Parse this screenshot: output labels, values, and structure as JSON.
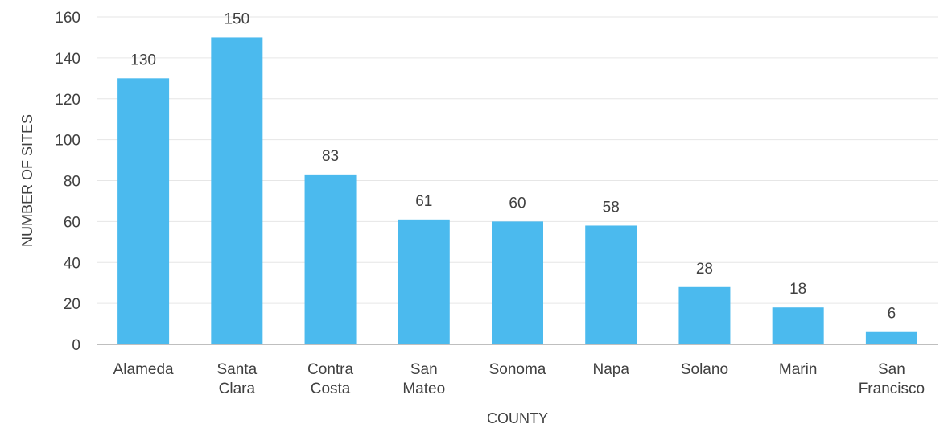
{
  "chart_data": {
    "type": "bar",
    "title": "",
    "xlabel": "COUNTY",
    "ylabel": "NUMBER OF SITES",
    "ylim": [
      0,
      160
    ],
    "yticks": [
      0,
      20,
      40,
      60,
      80,
      100,
      120,
      140,
      160
    ],
    "grid": true,
    "legend": "none",
    "bar_color": "#4BBAEE",
    "categories": [
      [
        "Alameda"
      ],
      [
        "Santa",
        "Clara"
      ],
      [
        "Contra",
        "Costa"
      ],
      [
        "San",
        "Mateo"
      ],
      [
        "Sonoma"
      ],
      [
        "Napa"
      ],
      [
        "Solano"
      ],
      [
        "Marin"
      ],
      [
        "San",
        "Francisco"
      ]
    ],
    "values": [
      130,
      150,
      83,
      61,
      60,
      58,
      28,
      18,
      6
    ]
  }
}
